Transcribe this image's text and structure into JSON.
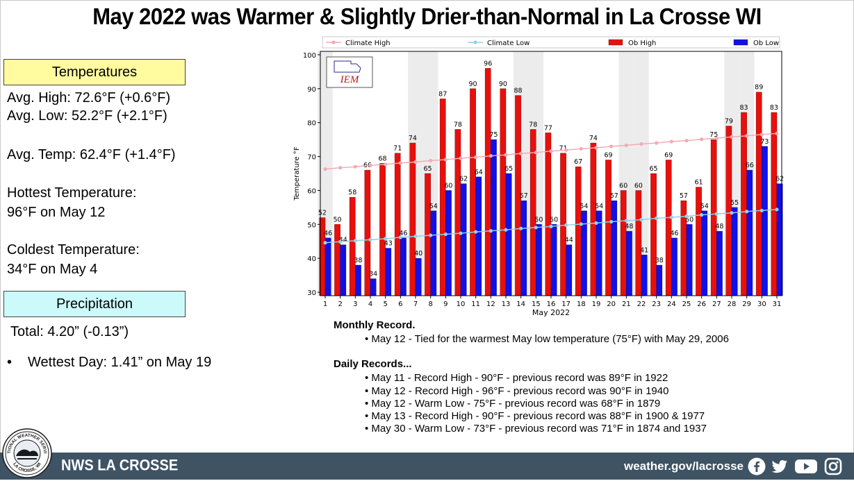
{
  "title": "May 2022 was Warmer & Slightly Drier-than-Normal in La Crosse WI",
  "temperatures": {
    "header": "Temperatures",
    "avg_high": "Avg. High:  72.6°F (+0.6°F)",
    "avg_low": "Avg. Low:  52.2°F (+2.1°F)",
    "avg_temp": "Avg. Temp:  62.4°F (+1.4°F)",
    "hottest_label": "Hottest Temperature:",
    "hottest_value": "96°F on May 12",
    "coldest_label": "Coldest Temperature:",
    "coldest_value": "34°F on May 4"
  },
  "precipitation": {
    "header": "Precipitation",
    "total": "Total:  4.20” (-0.13”)",
    "bullet": "•",
    "wettest": "Wettest Day: 1.41” on May 19"
  },
  "chart_data": {
    "type": "bar",
    "xlabel": "May 2022",
    "ylabel": "Temperature °F",
    "ylim": [
      29,
      101
    ],
    "yticks": [
      30,
      40,
      50,
      60,
      70,
      80,
      90,
      100
    ],
    "categories": [
      "1",
      "2",
      "3",
      "4",
      "5",
      "6",
      "7",
      "8",
      "9",
      "10",
      "11",
      "12",
      "13",
      "14",
      "15",
      "16",
      "17",
      "18",
      "19",
      "20",
      "21",
      "22",
      "23",
      "24",
      "25",
      "26",
      "27",
      "28",
      "29",
      "30",
      "31"
    ],
    "series": [
      {
        "name": "Ob High",
        "type": "bar",
        "color": "#e8100c",
        "values": [
          52,
          50,
          58,
          66,
          68,
          71,
          74,
          65,
          87,
          78,
          90,
          96,
          90,
          88,
          78,
          77,
          71,
          67,
          74,
          69,
          60,
          60,
          65,
          69,
          57,
          61,
          75,
          79,
          83,
          89,
          83
        ]
      },
      {
        "name": "Ob Low",
        "type": "bar",
        "color": "#1010e8",
        "values": [
          46,
          44,
          38,
          34,
          43,
          46,
          40,
          54,
          60,
          62,
          64,
          75,
          65,
          57,
          50,
          50,
          44,
          54,
          54,
          57,
          48,
          41,
          38,
          46,
          50,
          54,
          48,
          55,
          66,
          73,
          62
        ]
      },
      {
        "name": "Climate High",
        "type": "line",
        "color": "#f4aab6",
        "values": [
          66.3,
          66.7,
          67.0,
          67.4,
          67.7,
          68.1,
          68.4,
          68.8,
          69.1,
          69.5,
          69.8,
          70.2,
          70.5,
          70.9,
          71.2,
          71.6,
          71.9,
          72.3,
          72.6,
          73.0,
          73.3,
          73.7,
          74.0,
          74.4,
          74.7,
          75.1,
          75.4,
          75.8,
          76.1,
          76.5,
          76.8
        ]
      },
      {
        "name": "Climate Low",
        "type": "line",
        "color": "#8ed3e2",
        "values": [
          44.6,
          44.9,
          45.2,
          45.5,
          45.8,
          46.2,
          46.5,
          46.8,
          47.1,
          47.4,
          47.8,
          48.1,
          48.4,
          48.8,
          49.1,
          49.4,
          49.8,
          50.1,
          50.4,
          50.8,
          51.1,
          51.4,
          51.8,
          52.1,
          52.4,
          52.8,
          53.1,
          53.4,
          53.8,
          54.1,
          54.4
        ]
      }
    ],
    "legend_placement": "top",
    "weekend_shading": [
      1,
      7,
      8,
      14,
      15,
      21,
      22,
      28,
      29
    ],
    "logo_text": "IEM"
  },
  "records": {
    "monthly_heading": "Monthly Record.",
    "monthly_items": [
      "• May 12 - Tied for the warmest May low temperature (75°F) with May 29, 2006"
    ],
    "daily_heading": "Daily Records...",
    "daily_items": [
      "• May 11 - Record High - 90°F - previous record was 89°F in 1922",
      "• May 12 - Record High - 96°F - previous record was 90°F in 1940",
      "• May 12 - Warm Low - 75°F - previous record was 68°F in 1879",
      "• May 13 - Record High - 90°F - previous record was 88°F in 1900 & 1977",
      "• May 30 - Warm Low - 73°F - previous record was 71°F in 1874 and 1937"
    ]
  },
  "footer": {
    "office": "NWS LA CROSSE",
    "url": "weather.gov/lacrosse",
    "logo_top": "NATIONAL WEATHER SERVICE",
    "logo_bottom": "LA CROSSE, WI",
    "social_icons": [
      "facebook-icon",
      "twitter-icon",
      "youtube-icon",
      "instagram-icon"
    ]
  }
}
